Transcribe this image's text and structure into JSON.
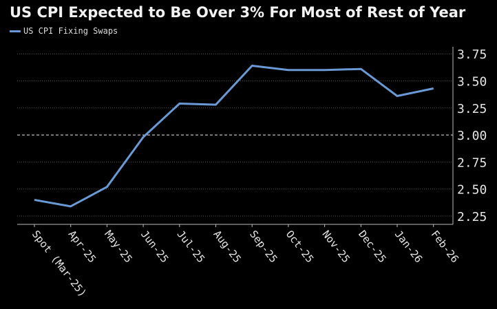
{
  "chart_data": {
    "type": "line",
    "title": "US CPI Expected to Be Over 3% For Most of Rest of Year",
    "xlabel": "",
    "ylabel": "",
    "categories": [
      "Spot (Mar-25)",
      "Apr-25",
      "May-25",
      "Jun-25",
      "Jul-25",
      "Aug-25",
      "Sep-25",
      "Oct-25",
      "Nov-25",
      "Dec-25",
      "Jan-26",
      "Feb-26"
    ],
    "series": [
      {
        "name": "US CPI Fixing Swaps",
        "values": [
          2.4,
          2.34,
          2.52,
          2.98,
          3.29,
          3.28,
          3.64,
          3.6,
          3.6,
          3.61,
          3.36,
          3.43
        ],
        "color": "#6a9ad6"
      }
    ],
    "ylim": [
      2.2,
      3.8
    ],
    "yticks": [
      "2.25",
      "2.50",
      "2.75",
      "3.00",
      "3.25",
      "3.50",
      "3.75"
    ],
    "reference_line": 3.0,
    "y_axis_position": "right",
    "grid": true,
    "legend": "top-left"
  }
}
